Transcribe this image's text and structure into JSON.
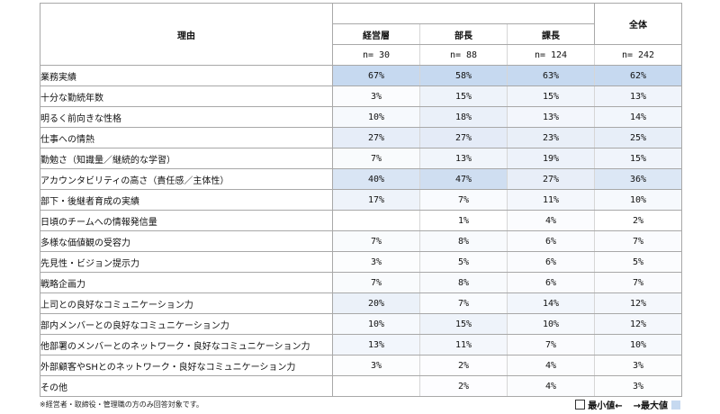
{
  "table": {
    "header": {
      "reason_label": "理由",
      "total_label": "全体",
      "groups": [
        {
          "label": "経営層",
          "n": "n= 30"
        },
        {
          "label": "部長",
          "n": "n= 88"
        },
        {
          "label": "課長",
          "n": "n= 124"
        }
      ],
      "total_n": "n= 242"
    },
    "rows": [
      {
        "reason": "業務実績",
        "values": [
          "67%",
          "58%",
          "63%",
          "62%"
        ],
        "bg": [
          "#c6d9f0",
          "#c6d9f0",
          "#c6d9f0",
          "#c6d9f0"
        ]
      },
      {
        "reason": "十分な勤続年数",
        "values": [
          "3%",
          "15%",
          "15%",
          "13%"
        ],
        "bg": [
          "#fbfcfe",
          "#eef3fa",
          "#f1f5fb",
          "#f0f4fb"
        ]
      },
      {
        "reason": "明るく前向きな性格",
        "values": [
          "10%",
          "18%",
          "13%",
          "14%"
        ],
        "bg": [
          "#f6f9fd",
          "#eaf0f9",
          "#f3f6fc",
          "#f2f6fc"
        ]
      },
      {
        "reason": "仕事への情熱",
        "values": [
          "27%",
          "27%",
          "23%",
          "25%"
        ],
        "bg": [
          "#e6edf8",
          "#e4ebf7",
          "#e9eff8",
          "#e7eef8"
        ]
      },
      {
        "reason": "勤勉さ（知識量／継続的な学習）",
        "values": [
          "7%",
          "13%",
          "19%",
          "15%"
        ],
        "bg": [
          "#f9fbfd",
          "#f1f5fb",
          "#edf2fa",
          "#f0f4fb"
        ]
      },
      {
        "reason": "アカウンタビリティの高さ（責任感／主体性）",
        "values": [
          "40%",
          "47%",
          "27%",
          "36%"
        ],
        "bg": [
          "#d9e5f4",
          "#cfdef1",
          "#e8eef8",
          "#dce7f5"
        ]
      },
      {
        "reason": "部下・後継者育成の実績",
        "values": [
          "17%",
          "7%",
          "11%",
          "10%"
        ],
        "bg": [
          "#eef3fa",
          "#f9fbfe",
          "#f4f7fc",
          "#f6f9fd"
        ]
      },
      {
        "reason": "日頃のチームへの情報発信量",
        "values": [
          "",
          "1%",
          "4%",
          "2%"
        ],
        "bg": [
          "#ffffff",
          "#ffffff",
          "#fbfcfe",
          "#ffffff"
        ]
      },
      {
        "reason": "多様な価値観の受容力",
        "values": [
          "7%",
          "8%",
          "6%",
          "7%"
        ],
        "bg": [
          "#f9fbfd",
          "#f8fafd",
          "#fafbfe",
          "#fafbfe"
        ]
      },
      {
        "reason": "先見性・ビジョン提示力",
        "values": [
          "3%",
          "5%",
          "6%",
          "5%"
        ],
        "bg": [
          "#fcfdfe",
          "#fbfcfe",
          "#fafbfe",
          "#fbfcfe"
        ]
      },
      {
        "reason": "戦略企画力",
        "values": [
          "7%",
          "8%",
          "6%",
          "7%"
        ],
        "bg": [
          "#f9fbfd",
          "#f8fafd",
          "#fafbfe",
          "#fafbfe"
        ]
      },
      {
        "reason": "上司との良好なコミュニケーション力",
        "values": [
          "20%",
          "7%",
          "14%",
          "12%"
        ],
        "bg": [
          "#ebf1f9",
          "#f9fbfe",
          "#f2f6fc",
          "#f4f7fc"
        ]
      },
      {
        "reason": "部内メンバーとの良好なコミュニケーション力",
        "values": [
          "10%",
          "15%",
          "10%",
          "12%"
        ],
        "bg": [
          "#f6f9fd",
          "#eef3fa",
          "#f6f9fd",
          "#f4f7fc"
        ]
      },
      {
        "reason": "他部署のメンバーとのネットワーク・良好なコミュニケーション力",
        "values": [
          "13%",
          "11%",
          "7%",
          "10%"
        ],
        "bg": [
          "#f2f6fc",
          "#f4f7fc",
          "#fafbfe",
          "#f6f9fd"
        ]
      },
      {
        "reason": "外部顧客やSHとのネットワーク・良好なコミュニケーション力",
        "values": [
          "3%",
          "2%",
          "4%",
          "3%"
        ],
        "bg": [
          "#fcfdfe",
          "#fdfdff",
          "#fbfcfe",
          "#fcfdfe"
        ]
      },
      {
        "reason": "その他",
        "values": [
          "",
          "2%",
          "4%",
          "3%"
        ],
        "bg": [
          "#ffffff",
          "#fdfdff",
          "#fbfcfe",
          "#fcfdfe"
        ]
      }
    ]
  },
  "footnote": "※経営者・取締役・管理職の方のみ回答対象です。",
  "legend": {
    "min_label": "最小値←",
    "max_label": "→最大値",
    "min_color": "#ffffff",
    "max_color": "#c6d9f0"
  }
}
